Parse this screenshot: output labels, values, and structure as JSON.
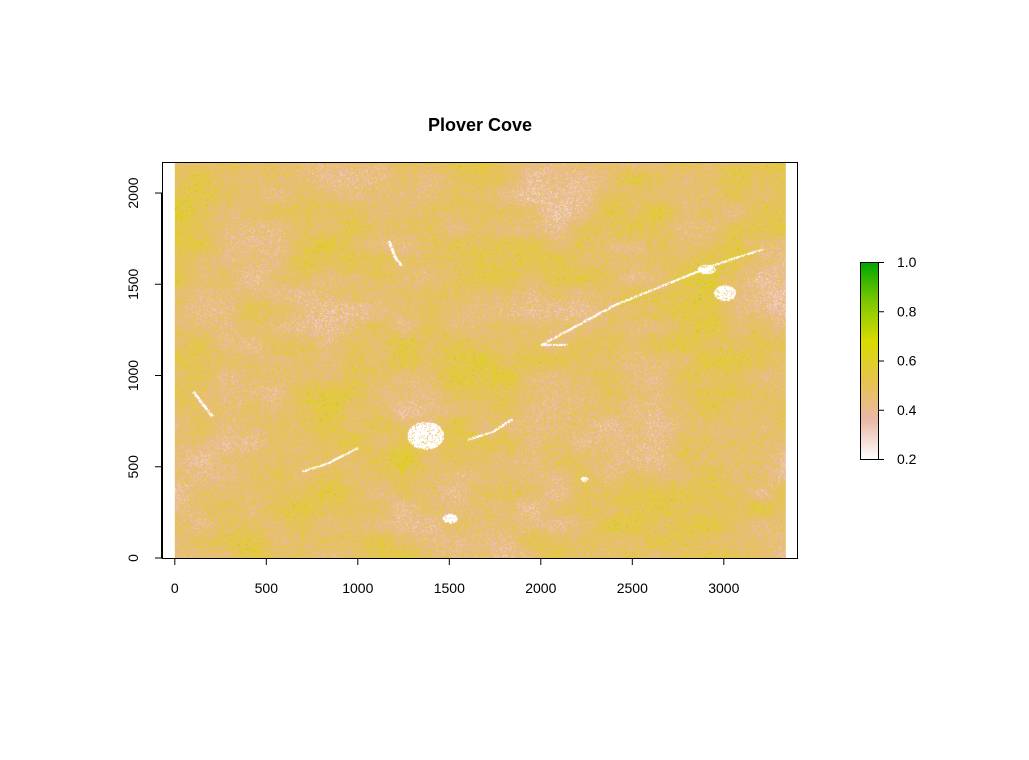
{
  "chart_data": {
    "type": "heatmap",
    "title": "Plover Cove",
    "xlabel": "",
    "ylabel": "",
    "xlim": [
      -70,
      3400
    ],
    "ylim": [
      0,
      2170
    ],
    "raster_extent": {
      "x": [
        0,
        3340
      ],
      "y": [
        0,
        2170
      ]
    },
    "xticks": [
      0,
      500,
      1000,
      1500,
      2000,
      2500,
      3000
    ],
    "xtick_labels": [
      "0",
      "500",
      "1000",
      "1500",
      "2000",
      "2500",
      "3000"
    ],
    "yticks": [
      0,
      500,
      1000,
      1500,
      2000
    ],
    "ytick_labels": [
      "0",
      "500",
      "1000",
      "1500",
      "2000"
    ],
    "legend": {
      "placement": "right",
      "range": [
        0.2,
        1.0
      ],
      "ticks": [
        0.2,
        0.4,
        0.6,
        0.8,
        1.0
      ],
      "tick_labels": [
        "0.2",
        "0.4",
        "0.6",
        "0.8",
        "1.0"
      ],
      "colors": [
        "#FFFFFF",
        "#EAB8A8",
        "#E7C34F",
        "#D9DB00",
        "#7EC800",
        "#00A600"
      ]
    },
    "description_values": {
      "dominant_range": [
        0.4,
        0.6
      ],
      "no_data_areas": "white streams and patches"
    }
  }
}
